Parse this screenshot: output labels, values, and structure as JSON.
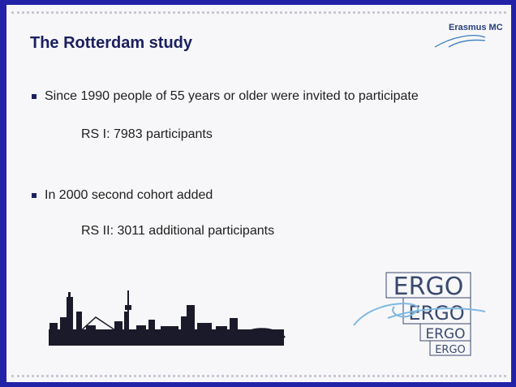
{
  "header": {
    "title": "The Rotterdam study",
    "logo": "Erasmus MC"
  },
  "bullets": [
    {
      "text": "Since 1990 people of 55 years or older were invited to participate",
      "detail": "RS I: 7983 participants"
    },
    {
      "text": "In 2000 second cohort added",
      "detail": "RS II: 3011 additional participants"
    }
  ],
  "ergo_logo": [
    "ERGO",
    "ERGO",
    "ERGO",
    "ERGO"
  ]
}
